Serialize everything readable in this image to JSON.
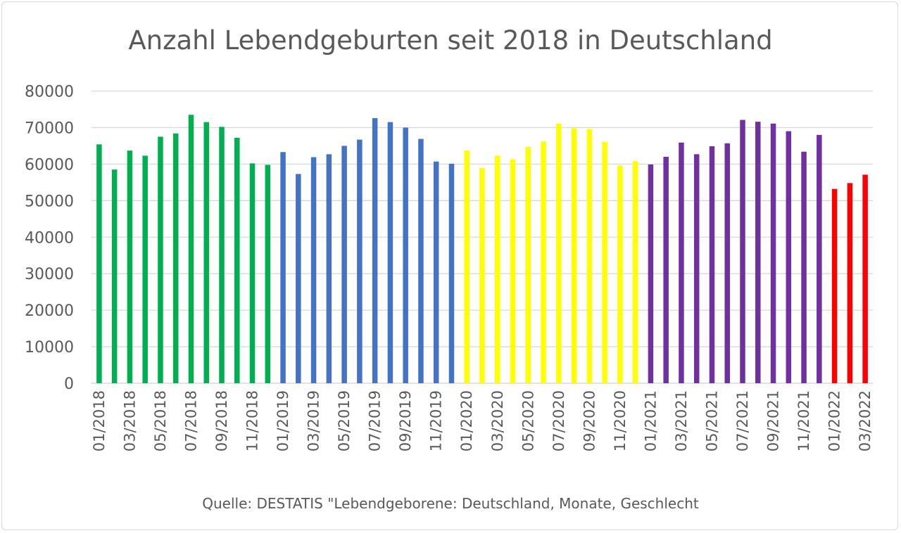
{
  "chart_data": {
    "type": "bar",
    "title": "Anzahl Lebendgeburten seit 2018 in Deutschland",
    "source": "Quelle: DESTATIS \"Lebendgeborene: Deutschland, Monate, Geschlecht",
    "xlabel": "",
    "ylabel": "",
    "ylim": [
      0,
      80000
    ],
    "yticks": [
      "0",
      "10000",
      "20000",
      "30000",
      "40000",
      "50000",
      "60000",
      "70000",
      "80000"
    ],
    "grid": true,
    "legend": "none",
    "xtick_labels": [
      "01/2018",
      "03/2018",
      "05/2018",
      "07/2018",
      "09/2018",
      "11/2018",
      "01/2019",
      "03/2019",
      "05/2019",
      "07/2019",
      "09/2019",
      "11/2019",
      "01/2020",
      "03/2020",
      "05/2020",
      "07/2020",
      "09/2020",
      "11/2020",
      "01/2021",
      "03/2021",
      "05/2021",
      "07/2021",
      "09/2021",
      "11/2021",
      "01/2022",
      "03/2022"
    ],
    "year_colors": {
      "2018": "#00B050",
      "2019": "#4472C4",
      "2020": "#FFFF00",
      "2021": "#7030A0",
      "2022": "#FF0000"
    },
    "categories": [
      "01/2018",
      "02/2018",
      "03/2018",
      "04/2018",
      "05/2018",
      "06/2018",
      "07/2018",
      "08/2018",
      "09/2018",
      "10/2018",
      "11/2018",
      "12/2018",
      "01/2019",
      "02/2019",
      "03/2019",
      "04/2019",
      "05/2019",
      "06/2019",
      "07/2019",
      "08/2019",
      "09/2019",
      "10/2019",
      "11/2019",
      "12/2019",
      "01/2020",
      "02/2020",
      "03/2020",
      "04/2020",
      "05/2020",
      "06/2020",
      "07/2020",
      "08/2020",
      "09/2020",
      "10/2020",
      "11/2020",
      "12/2020",
      "01/2021",
      "02/2021",
      "03/2021",
      "04/2021",
      "05/2021",
      "06/2021",
      "07/2021",
      "08/2021",
      "09/2021",
      "10/2021",
      "11/2021",
      "12/2021",
      "01/2022",
      "02/2022",
      "03/2022"
    ],
    "values": [
      65400,
      58500,
      63700,
      62300,
      67500,
      68400,
      73500,
      71500,
      70200,
      67200,
      60200,
      59800,
      63300,
      57300,
      61900,
      62700,
      65000,
      66700,
      72600,
      71500,
      70000,
      66900,
      60700,
      60100,
      63700,
      58900,
      62300,
      61300,
      64700,
      66200,
      71100,
      69800,
      69600,
      66100,
      59600,
      60800,
      59900,
      62000,
      65900,
      62700,
      64900,
      65700,
      72100,
      71600,
      71100,
      69000,
      63400,
      68000,
      53200,
      54800,
      57100
    ]
  }
}
